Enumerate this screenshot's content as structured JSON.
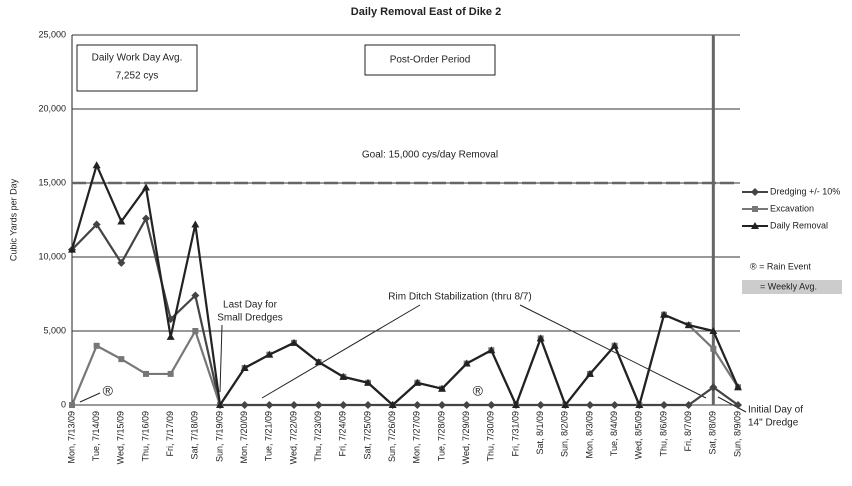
{
  "chart_data": {
    "type": "line",
    "title": "Daily Removal East of Dike 2",
    "y_label": "Cubic Yards per Day",
    "categories": [
      "Mon, 7/13/09",
      "Tue, 7/14/09",
      "Wed, 7/15/09",
      "Thu, 7/16/09",
      "Fri, 7/17/09",
      "Sat, 7/18/09",
      "Sun, 7/19/09",
      "Mon, 7/20/09",
      "Tue, 7/21/09",
      "Wed, 7/22/09",
      "Thu, 7/23/09",
      "Fri, 7/24/09",
      "Sat, 7/25/09",
      "Sun, 7/26/09",
      "Mon, 7/27/09",
      "Tue, 7/28/09",
      "Wed, 7/29/09",
      "Thu, 7/30/09",
      "Fri, 7/31/09",
      "Sat, 8/1/09",
      "Sun, 8/2/09",
      "Mon, 8/3/09",
      "Tue, 8/4/09",
      "Wed, 8/5/09",
      "Thu, 8/6/09",
      "Fri, 8/7/09",
      "Sat, 8/8/09",
      "Sun, 8/9/09"
    ],
    "series": [
      {
        "name": "Dredging +/- 10%",
        "color": "#444444",
        "marker": "diamond",
        "values": [
          10500,
          12200,
          9600,
          12600,
          5800,
          7400,
          0,
          0,
          0,
          0,
          0,
          0,
          0,
          0,
          0,
          0,
          0,
          0,
          0,
          0,
          0,
          0,
          0,
          0,
          0,
          0,
          1200,
          0
        ]
      },
      {
        "name": "Excavation",
        "color": "#777777",
        "marker": "square",
        "values": [
          0,
          4000,
          3100,
          2100,
          2100,
          5000,
          0,
          2500,
          3400,
          4200,
          2900,
          1900,
          1500,
          0,
          1500,
          1100,
          2800,
          3700,
          0,
          4500,
          0,
          2100,
          4000,
          0,
          6100,
          5400,
          3800,
          1200
        ]
      },
      {
        "name": "Daily Removal",
        "color": "#222222",
        "marker": "triangle",
        "values": [
          10500,
          16200,
          12400,
          14700,
          4600,
          12200,
          0,
          2500,
          3400,
          4200,
          2900,
          1900,
          1500,
          0,
          1500,
          1100,
          2800,
          3700,
          0,
          4500,
          0,
          2100,
          4000,
          0,
          6100,
          5400,
          5000,
          1200
        ]
      }
    ],
    "ylim": [
      0,
      25000
    ],
    "yticks": [
      0,
      {
        "value": 5000,
        "label": "5,000"
      },
      {
        "value": 10000,
        "label": "10,000"
      },
      {
        "value": 15000,
        "label": "15,000"
      },
      {
        "value": 20000,
        "label": "20,000"
      },
      {
        "value": 25000,
        "label": "25,000"
      }
    ],
    "grid": true,
    "goal": {
      "value": 15000,
      "label": "Goal: 15,000 cys/day Removal"
    },
    "vertical_line_category": 26,
    "rain_symbol": "®",
    "rain_event_categories": [
      1,
      16
    ],
    "legend_extra": [
      "® = Rain Event",
      "= Weekly Avg."
    ],
    "annotations": {
      "work_day_avg": [
        "Daily Work Day Avg.",
        "7,252 cys"
      ],
      "post_order": "Post-Order Period",
      "last_day": [
        "Last Day for",
        "Small Dredges"
      ],
      "rim_ditch": "Rim Ditch Stabilization (thru 8/7)",
      "initial_day": [
        "Initial Day of",
        "14\" Dredge"
      ]
    }
  }
}
